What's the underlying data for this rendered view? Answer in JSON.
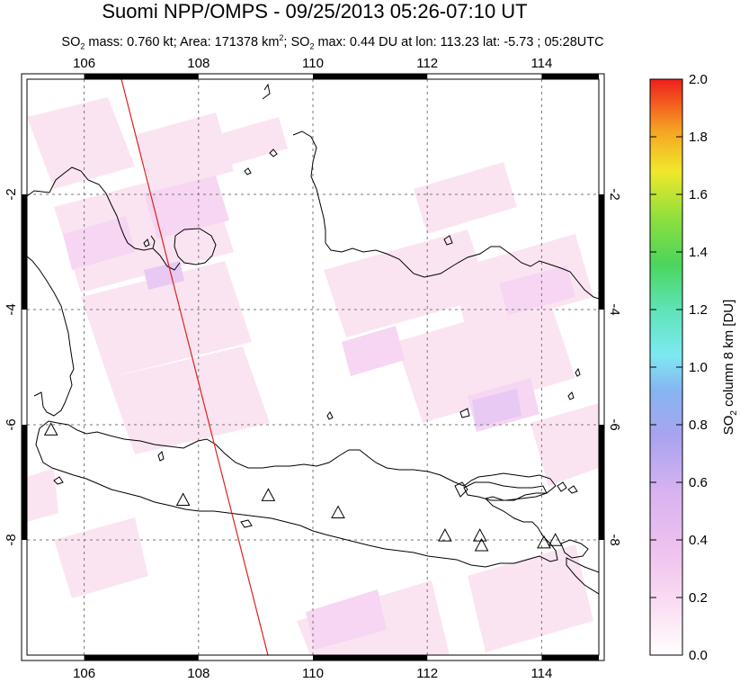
{
  "header": {
    "title": "Suomi NPP/OMPS - 09/25/2013 05:26-07:10 UT",
    "subtitle_parts": {
      "so2_label": "SO",
      "so2_sub": "2",
      "mass_text": " mass: 0.760 kt; Area: 171378 km",
      "area_sup": "2",
      "sep": "; ",
      "so2max_label": "SO",
      "so2max_sub": "2",
      "max_text": " max: 0.44 DU at lon: 113.23 lat: -5.73 ; 05:28UTC"
    }
  },
  "map": {
    "lon_range": [
      105,
      115
    ],
    "lat_range": [
      -10,
      0
    ],
    "lon_ticks": [
      "106",
      "108",
      "110",
      "112",
      "114"
    ],
    "lat_ticks": [
      "-2",
      "-4",
      "-6",
      "-8"
    ],
    "volcano_icon": "triangle-icon",
    "orbit_line_color": "#e0201b",
    "volcanoes": [
      {
        "lon": 105.42,
        "lat": -6.1
      },
      {
        "lon": 107.73,
        "lat": -7.32
      },
      {
        "lon": 109.22,
        "lat": -7.24
      },
      {
        "lon": 110.44,
        "lat": -7.54
      },
      {
        "lon": 112.31,
        "lat": -7.94
      },
      {
        "lon": 112.92,
        "lat": -7.94
      },
      {
        "lon": 112.95,
        "lat": -8.11
      },
      {
        "lon": 114.04,
        "lat": -8.06
      },
      {
        "lon": 114.24,
        "lat": -8.02
      }
    ]
  },
  "colorbar": {
    "ticks": [
      "0.0",
      "0.2",
      "0.4",
      "0.6",
      "0.8",
      "1.0",
      "1.2",
      "1.4",
      "1.6",
      "1.8",
      "2.0"
    ],
    "label_main": "SO",
    "label_sub": "2",
    "label_rest": " column 8 km [DU]",
    "colors": [
      "#ffffff",
      "#fbd9f0",
      "#e9b8ee",
      "#b9a6ee",
      "#8e9cf0",
      "#7fdcf2",
      "#5fe2a8",
      "#4bd04b",
      "#9ee13a",
      "#f3e92a",
      "#f6a323",
      "#f15a1c",
      "#ee1c1c"
    ]
  }
}
